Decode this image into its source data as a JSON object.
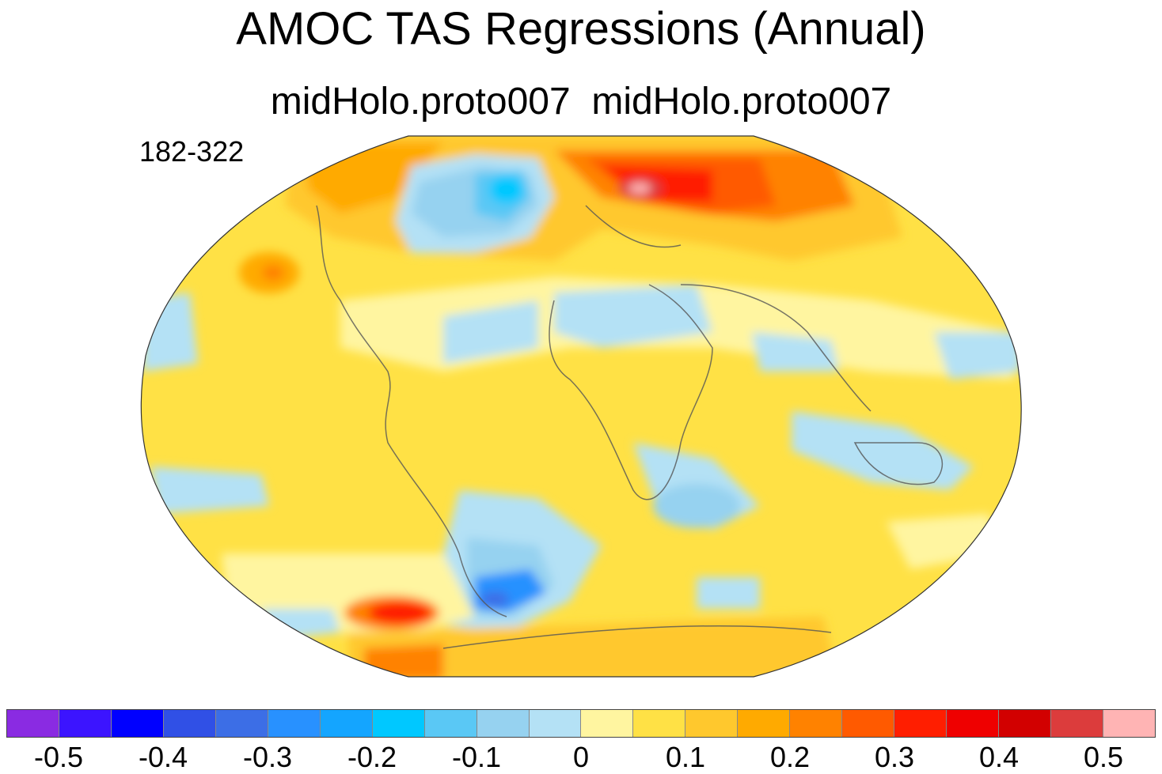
{
  "title": "AMOC TAS Regressions (Annual)",
  "subtitle": "midHolo.proto007  midHolo.proto007",
  "years": "182-322",
  "projection": "robinson",
  "colorbar": {
    "colors": [
      "#8a2be2",
      "#3c14ff",
      "#0000ff",
      "#3050e6",
      "#3c6ee6",
      "#2891ff",
      "#14a5ff",
      "#00c8ff",
      "#5ac8f5",
      "#96d2f0",
      "#b4e1f5",
      "#fff5a0",
      "#ffe145",
      "#ffc82d",
      "#ffaa00",
      "#ff8200",
      "#ff5a00",
      "#ff1e00",
      "#ef0000",
      "#d20000",
      "#dc3c3c",
      "#ffb4b4"
    ],
    "tick_labels": [
      "-0.5",
      "-0.4",
      "-0.3",
      "-0.2",
      "-0.1",
      "0",
      "0.1",
      "0.2",
      "0.3",
      "0.4",
      "0.5"
    ]
  }
}
